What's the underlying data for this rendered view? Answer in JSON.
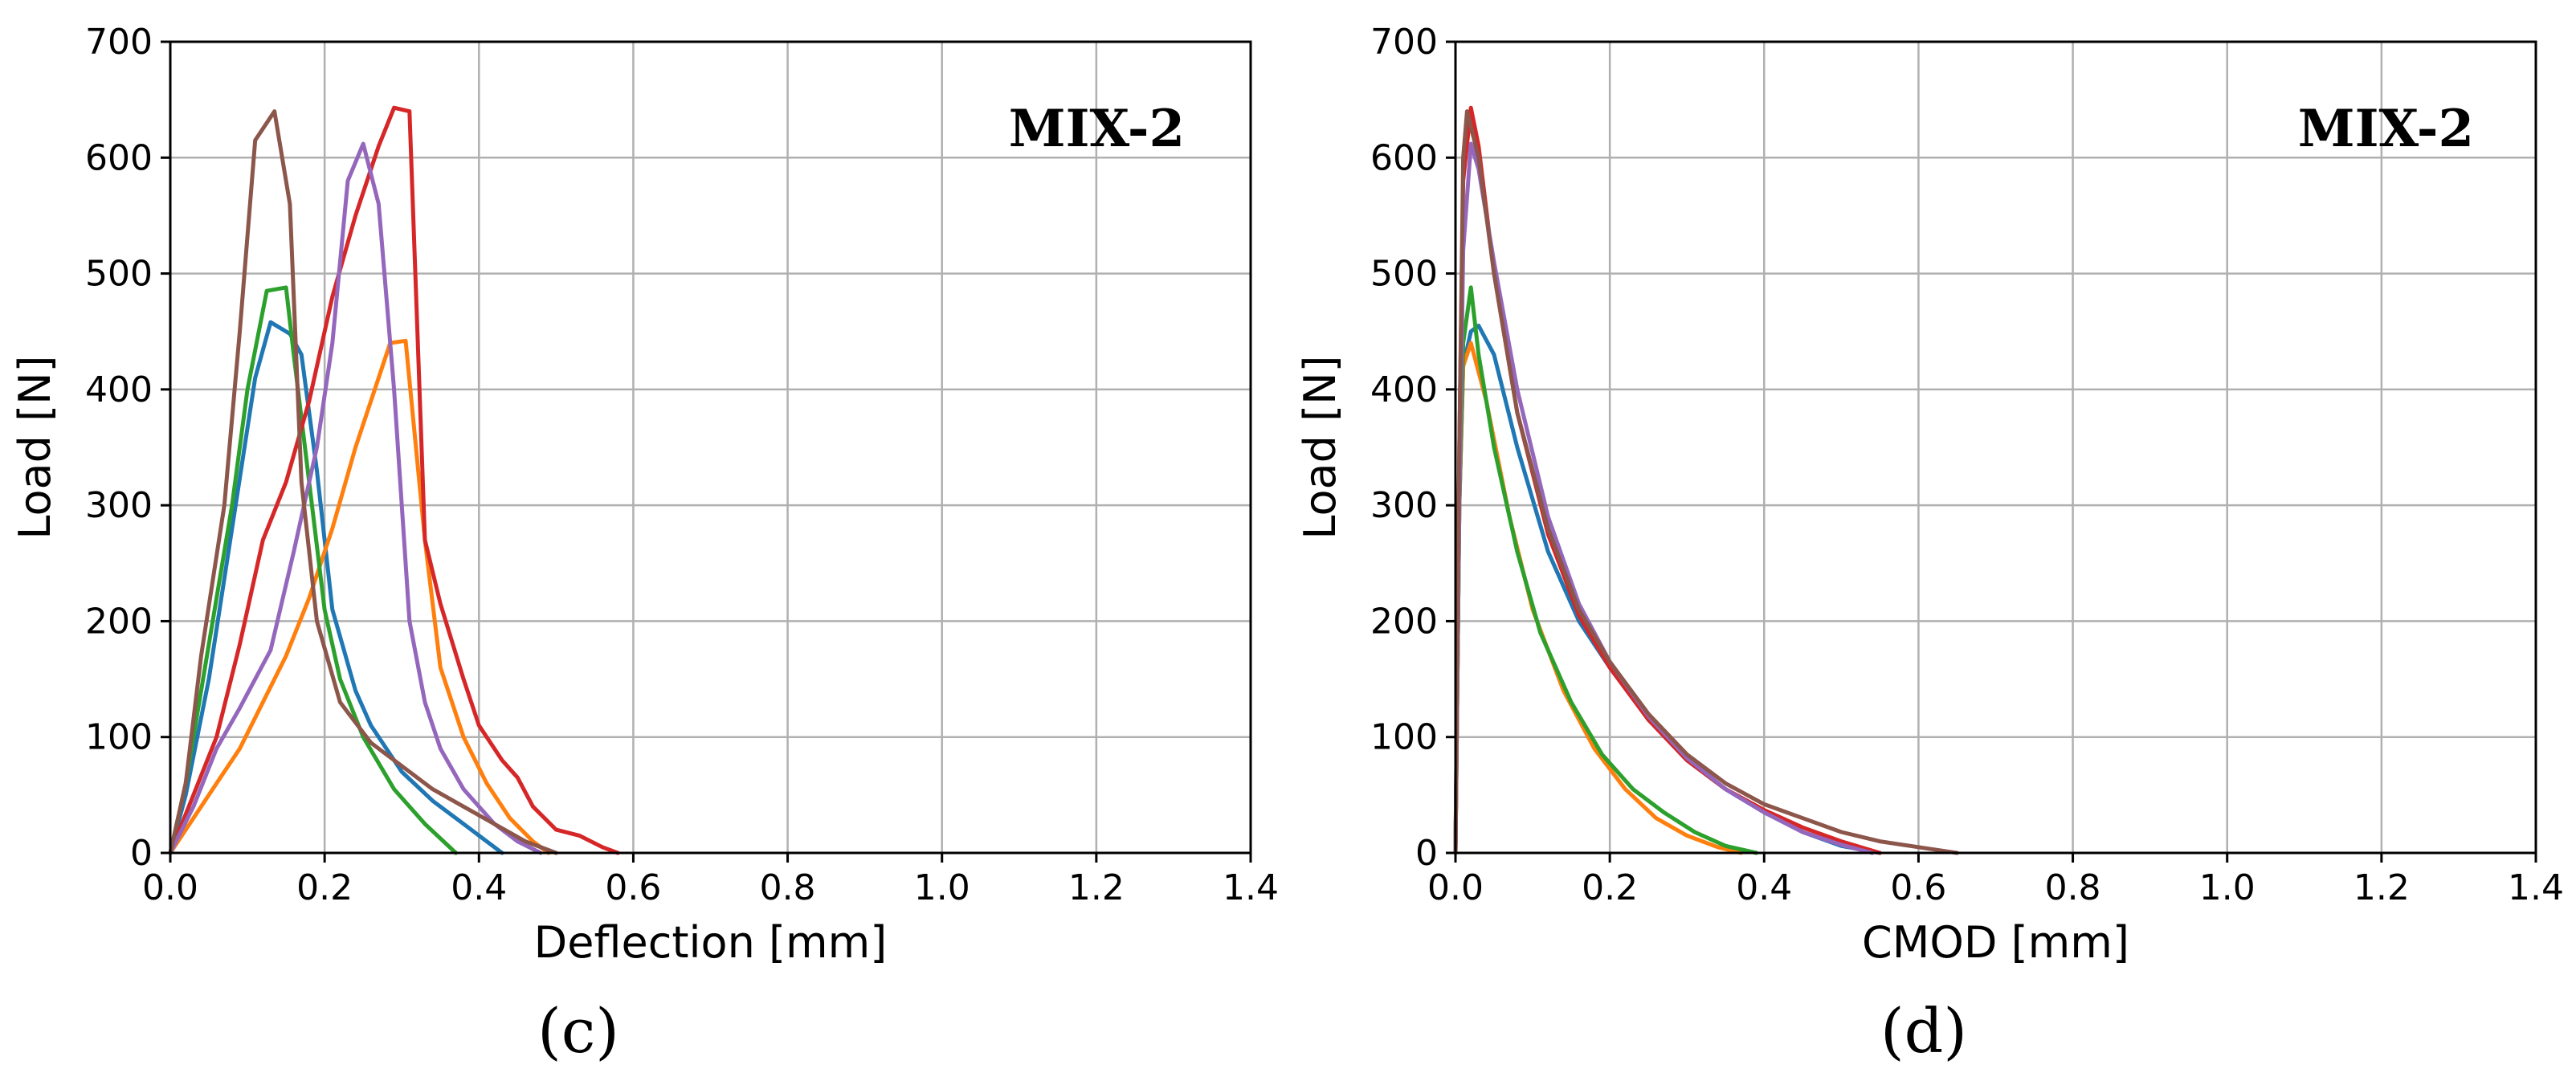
{
  "chart_data": [
    {
      "type": "line",
      "panel_label": "(c)",
      "tag": "MIX-2",
      "xlabel": "Deflection [mm]",
      "ylabel": "Load [N]",
      "xlim": [
        0,
        1.4
      ],
      "ylim": [
        0,
        700
      ],
      "xticks": [
        0,
        0.2,
        0.4,
        0.6,
        0.8,
        1.0,
        1.2,
        1.4
      ],
      "xtick_labels": [
        "0.0",
        "0.2",
        "0.4",
        "0.6",
        "0.8",
        "1.0",
        "1.2",
        "1.4"
      ],
      "yticks": [
        0,
        100,
        200,
        300,
        400,
        500,
        600,
        700
      ],
      "ytick_labels": [
        "0",
        "100",
        "200",
        "300",
        "400",
        "500",
        "600",
        "700"
      ],
      "grid": true,
      "series": [
        {
          "name": "specimen-blue",
          "color": "#1f77b4",
          "x": [
            0,
            0.02,
            0.05,
            0.08,
            0.11,
            0.13,
            0.155,
            0.17,
            0.19,
            0.21,
            0.24,
            0.26,
            0.3,
            0.34,
            0.38,
            0.41,
            0.43
          ],
          "y": [
            0,
            50,
            150,
            280,
            410,
            458,
            448,
            430,
            330,
            210,
            140,
            110,
            70,
            45,
            25,
            10,
            0
          ]
        },
        {
          "name": "specimen-orange",
          "color": "#ff7f0e",
          "x": [
            0,
            0.03,
            0.06,
            0.09,
            0.12,
            0.15,
            0.18,
            0.21,
            0.24,
            0.27,
            0.285,
            0.305,
            0.33,
            0.35,
            0.38,
            0.41,
            0.44,
            0.47,
            0.49
          ],
          "y": [
            0,
            30,
            60,
            90,
            130,
            170,
            220,
            280,
            350,
            410,
            440,
            442,
            270,
            160,
            100,
            60,
            30,
            10,
            0
          ]
        },
        {
          "name": "specimen-green",
          "color": "#2ca02c",
          "x": [
            0,
            0.02,
            0.05,
            0.08,
            0.1,
            0.125,
            0.15,
            0.16,
            0.18,
            0.2,
            0.22,
            0.25,
            0.29,
            0.33,
            0.37
          ],
          "y": [
            0,
            60,
            180,
            300,
            400,
            485,
            488,
            430,
            320,
            210,
            150,
            100,
            55,
            25,
            0
          ]
        },
        {
          "name": "specimen-red",
          "color": "#d62728",
          "x": [
            0,
            0.03,
            0.06,
            0.09,
            0.12,
            0.15,
            0.18,
            0.21,
            0.24,
            0.27,
            0.29,
            0.31,
            0.33,
            0.35,
            0.38,
            0.4,
            0.43,
            0.45,
            0.47,
            0.5,
            0.53,
            0.56,
            0.58
          ],
          "y": [
            0,
            50,
            100,
            180,
            270,
            320,
            390,
            480,
            550,
            610,
            643,
            640,
            270,
            215,
            150,
            110,
            80,
            65,
            40,
            20,
            15,
            5,
            0
          ]
        },
        {
          "name": "specimen-purple",
          "color": "#9467bd",
          "x": [
            0,
            0.03,
            0.06,
            0.09,
            0.13,
            0.16,
            0.19,
            0.21,
            0.23,
            0.25,
            0.27,
            0.29,
            0.31,
            0.33,
            0.35,
            0.38,
            0.42,
            0.45,
            0.48
          ],
          "y": [
            0,
            40,
            90,
            125,
            175,
            260,
            350,
            440,
            580,
            612,
            560,
            400,
            200,
            130,
            90,
            55,
            25,
            10,
            0
          ]
        },
        {
          "name": "specimen-brown",
          "color": "#8c564b",
          "x": [
            0,
            0.02,
            0.04,
            0.07,
            0.09,
            0.11,
            0.135,
            0.155,
            0.17,
            0.19,
            0.22,
            0.26,
            0.3,
            0.34,
            0.38,
            0.42,
            0.46,
            0.5
          ],
          "y": [
            0,
            60,
            170,
            300,
            450,
            615,
            640,
            560,
            320,
            200,
            130,
            95,
            75,
            55,
            40,
            25,
            10,
            0
          ]
        }
      ]
    },
    {
      "type": "line",
      "panel_label": "(d)",
      "tag": "MIX-2",
      "xlabel": "CMOD [mm]",
      "ylabel": "Load [N]",
      "xlim": [
        0,
        1.4
      ],
      "ylim": [
        0,
        700
      ],
      "xticks": [
        0,
        0.2,
        0.4,
        0.6,
        0.8,
        1.0,
        1.2,
        1.4
      ],
      "xtick_labels": [
        "0.0",
        "0.2",
        "0.4",
        "0.6",
        "0.8",
        "1.0",
        "1.2",
        "1.4"
      ],
      "yticks": [
        0,
        100,
        200,
        300,
        400,
        500,
        600,
        700
      ],
      "ytick_labels": [
        "0",
        "100",
        "200",
        "300",
        "400",
        "500",
        "600",
        "700"
      ],
      "grid": true,
      "series": [
        {
          "name": "specimen-blue",
          "color": "#1f77b4",
          "x": [
            0,
            0.005,
            0.01,
            0.02,
            0.03,
            0.05,
            0.08,
            0.12,
            0.16,
            0.2,
            0.25,
            0.3,
            0.35,
            0.4,
            0.45,
            0.5,
            0.55
          ],
          "y": [
            0,
            300,
            420,
            450,
            455,
            430,
            350,
            260,
            200,
            160,
            115,
            80,
            55,
            35,
            18,
            6,
            0
          ]
        },
        {
          "name": "specimen-orange",
          "color": "#ff7f0e",
          "x": [
            0,
            0.005,
            0.01,
            0.02,
            0.04,
            0.07,
            0.1,
            0.14,
            0.18,
            0.22,
            0.26,
            0.3,
            0.34,
            0.37
          ],
          "y": [
            0,
            300,
            420,
            440,
            390,
            290,
            210,
            140,
            90,
            55,
            30,
            15,
            5,
            0
          ]
        },
        {
          "name": "specimen-green",
          "color": "#2ca02c",
          "x": [
            0,
            0.005,
            0.01,
            0.02,
            0.03,
            0.05,
            0.08,
            0.11,
            0.15,
            0.19,
            0.23,
            0.27,
            0.31,
            0.35,
            0.39
          ],
          "y": [
            0,
            300,
            440,
            488,
            430,
            350,
            260,
            190,
            130,
            85,
            55,
            35,
            18,
            6,
            0
          ]
        },
        {
          "name": "specimen-red",
          "color": "#d62728",
          "x": [
            0,
            0.005,
            0.01,
            0.02,
            0.03,
            0.05,
            0.08,
            0.12,
            0.16,
            0.2,
            0.25,
            0.3,
            0.35,
            0.4,
            0.45,
            0.5,
            0.55
          ],
          "y": [
            0,
            350,
            580,
            643,
            610,
            500,
            380,
            275,
            205,
            160,
            115,
            80,
            55,
            37,
            22,
            10,
            0
          ]
        },
        {
          "name": "specimen-purple",
          "color": "#9467bd",
          "x": [
            0,
            0.005,
            0.01,
            0.02,
            0.03,
            0.05,
            0.08,
            0.12,
            0.16,
            0.2,
            0.25,
            0.3,
            0.35,
            0.4,
            0.45,
            0.5,
            0.54
          ],
          "y": [
            0,
            300,
            520,
            612,
            590,
            510,
            400,
            290,
            215,
            165,
            118,
            82,
            55,
            35,
            18,
            7,
            0
          ]
        },
        {
          "name": "specimen-brown",
          "color": "#8c564b",
          "x": [
            0,
            0.005,
            0.01,
            0.015,
            0.03,
            0.05,
            0.08,
            0.12,
            0.16,
            0.2,
            0.25,
            0.3,
            0.35,
            0.4,
            0.45,
            0.5,
            0.55,
            0.6,
            0.65
          ],
          "y": [
            0,
            350,
            600,
            640,
            600,
            500,
            380,
            280,
            210,
            165,
            120,
            85,
            60,
            42,
            30,
            18,
            10,
            5,
            0
          ]
        }
      ]
    }
  ]
}
